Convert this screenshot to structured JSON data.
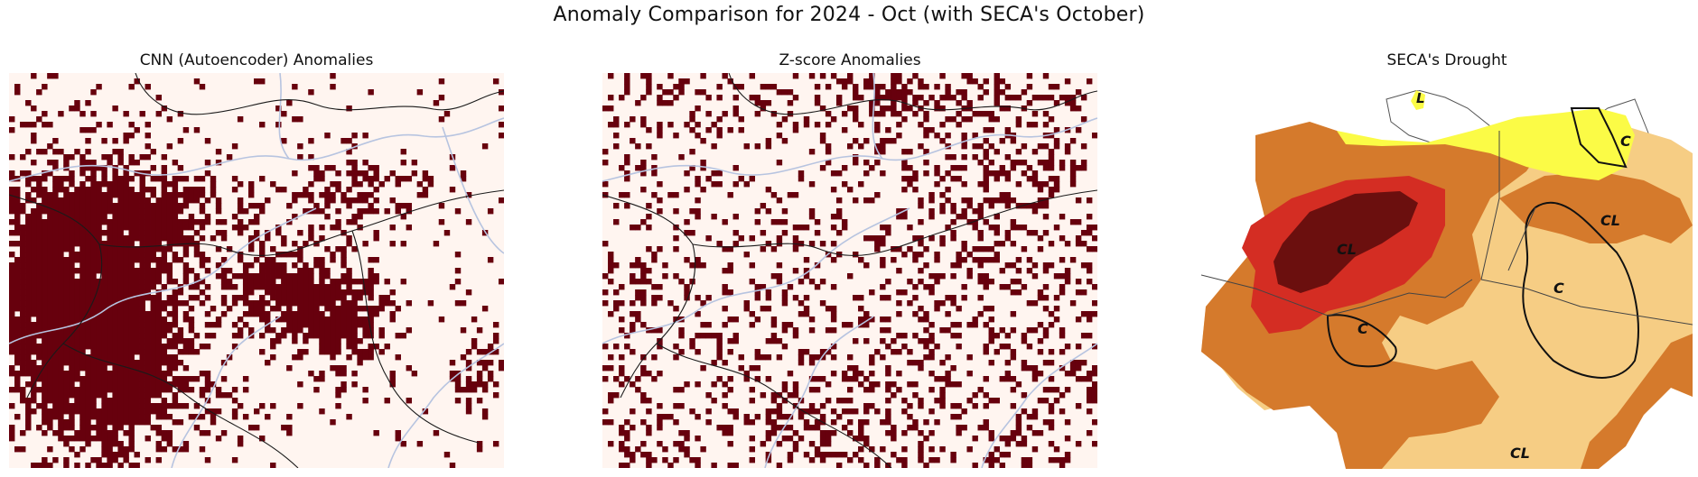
{
  "figure": {
    "title": "Anomaly Comparison for 2024 - Oct (with SECA's October)"
  },
  "panels": [
    {
      "title": "CNN (Autoencoder) Anomalies"
    },
    {
      "title": "Z-score Anomalies"
    },
    {
      "title": "SECA's Drought"
    }
  ],
  "colors": {
    "anomaly": "#67000d",
    "background": "#fff5f0",
    "river": "#b7c4e0",
    "border": "#1a1a1a",
    "drought_exceptional": "#6b0f0e",
    "drought_extreme": "#d42d23",
    "drought_severe": "#d57a2c",
    "drought_moderate": "#f6cd84",
    "drought_abnormal": "#fbfb46"
  },
  "seca_labels": [
    "L",
    "C",
    "CL",
    "CL",
    "C",
    "C",
    "CL"
  ]
}
